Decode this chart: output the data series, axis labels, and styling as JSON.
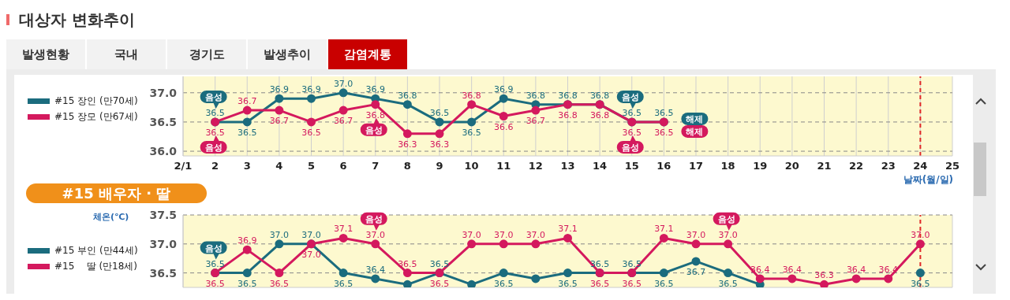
{
  "chart_data": [
    {
      "type": "line",
      "title": "대상자 변화추이",
      "xlabel": "날짜(월/일)",
      "xlim": [
        1,
        25
      ],
      "xticks": [
        {
          "value": 1,
          "label": "2/1"
        },
        2,
        3,
        4,
        5,
        6,
        7,
        8,
        9,
        10,
        11,
        12,
        13,
        14,
        15,
        16,
        17,
        18,
        19,
        20,
        21,
        22,
        23,
        24,
        25
      ],
      "ylim": [
        35.92,
        37.28
      ],
      "yticks": [
        {
          "value": 36.0,
          "label": "36.0"
        },
        {
          "value": 36.5,
          "label": "36.5"
        },
        {
          "value": 37.0,
          "label": "37.0"
        }
      ],
      "grid": true,
      "legend": "left",
      "marker": "circle",
      "line_style": "solid",
      "x": [
        2,
        3,
        4,
        5,
        6,
        7,
        8,
        9,
        10,
        11,
        12,
        13,
        14,
        15,
        16
      ],
      "series": [
        {
          "name": "#15 장인 (만70세)",
          "color": "#1b6c7e",
          "values": [
            36.5,
            36.5,
            36.9,
            36.9,
            37.0,
            36.9,
            36.8,
            36.5,
            36.5,
            36.9,
            36.8,
            36.8,
            36.8,
            36.5,
            36.5
          ],
          "value_labels": [
            "36.5",
            "36.5",
            "36.9",
            "36.9",
            "37.0",
            "36.9",
            "36.8",
            "36.5",
            "36.5",
            "36.9",
            "36.8",
            "36.8",
            "36.8",
            "36.5",
            "36.5"
          ]
        },
        {
          "name": "#15 장모 (만67세)",
          "color": "#d4195e",
          "values": [
            36.5,
            36.7,
            36.7,
            36.5,
            36.7,
            36.8,
            36.3,
            36.3,
            36.8,
            36.6,
            36.7,
            36.8,
            36.8,
            36.5,
            36.5
          ],
          "value_labels": [
            "36.5",
            "36.7",
            "36.7",
            "36.5",
            "36.7",
            "36.8",
            "36.3",
            "36.3",
            "36.8",
            "36.6",
            "36.7",
            "36.8",
            "36.8",
            "36.5",
            "36.5"
          ]
        }
      ],
      "ref_lines": [
        {
          "axis": "x",
          "value": 24,
          "color": "#e02828",
          "line_style": "dashed"
        }
      ],
      "annotations": [
        "발생현황",
        "국내",
        "경기도",
        "발생추이",
        "감염계통",
        {
          "text": "음성",
          "x": 2,
          "y": 36.5
        },
        {
          "text": "음성",
          "x": 2,
          "y": 36.5
        },
        {
          "text": "음성",
          "x": 7,
          "y": 36.8
        },
        {
          "text": "음성",
          "x": 15,
          "y": 36.5
        },
        {
          "text": "음성",
          "x": 15,
          "y": 36.5
        },
        {
          "text": "해제",
          "x": 16,
          "y": 36.5
        },
        {
          "text": "해제",
          "x": 16,
          "y": 36.5
        }
      ]
    },
    {
      "type": "line",
      "title": "#15 배우자 · 딸",
      "ylabel": "체온(℃)",
      "xlim": [
        1,
        25
      ],
      "xticks": [
        1,
        2,
        3,
        4,
        5,
        6,
        7,
        8,
        9,
        10,
        11,
        12,
        13,
        14,
        15,
        16,
        17,
        18,
        19,
        20,
        21,
        22,
        23,
        24,
        25
      ],
      "tick_labels": "y",
      "ylim": [
        36.25,
        37.5
      ],
      "yticks": [
        {
          "value": 36.5,
          "label": "36.5"
        },
        {
          "value": 37.0,
          "label": "37.0"
        },
        {
          "value": 37.5,
          "label": "37.5"
        }
      ],
      "grid": true,
      "legend": "left",
      "marker": "circle",
      "line_style": "solid",
      "x": [
        2,
        3,
        4,
        5,
        6,
        7,
        8,
        9,
        10,
        11,
        12,
        13,
        14,
        15,
        16,
        17,
        18,
        19,
        20,
        21,
        22,
        23,
        24
      ],
      "series": [
        {
          "name": "#15 부인 (만44세)",
          "color": "#1b6c7e",
          "values": [
            36.5,
            36.5,
            37.0,
            37.0,
            36.5,
            36.4,
            36.3,
            36.5,
            36.3,
            36.5,
            36.4,
            36.5,
            36.5,
            36.5,
            36.5,
            36.7,
            36.5,
            36.3,
            null,
            null,
            null,
            null,
            36.5
          ],
          "value_labels": [
            "36.5",
            "36.5",
            "37.0",
            "37.0",
            "36.5",
            "36.4",
            null,
            "36.5",
            null,
            "36.5",
            null,
            "36.5",
            "36.5",
            "36.5",
            "36.5",
            "36.7",
            "36.5",
            null,
            null,
            null,
            null,
            null,
            "36.5"
          ]
        },
        {
          "name": "#15    딸 (만18세)",
          "color": "#d4195e",
          "values": [
            36.5,
            36.9,
            36.5,
            37.0,
            37.1,
            37.0,
            36.5,
            36.5,
            37.0,
            37.0,
            37.0,
            37.1,
            36.5,
            36.5,
            37.1,
            37.0,
            37.0,
            36.4,
            36.4,
            36.3,
            36.4,
            36.4,
            37.0
          ],
          "value_labels": [
            "36.5",
            "36.9",
            "36.5",
            "37.0",
            "37.1",
            "37.0",
            "36.5",
            "36.5",
            "37.0",
            "37.0",
            "37.0",
            "37.1",
            "36.5",
            "36.5",
            "37.1",
            "37.0",
            "37.0",
            "36.4",
            "36.4",
            "36.3",
            "36.4",
            "36.4",
            "37.0"
          ]
        }
      ],
      "ref_lines": [
        {
          "axis": "x",
          "value": 24,
          "color": "#e02828",
          "line_style": "dashed"
        }
      ],
      "annotations": [
        {
          "text": "음성",
          "x": 2,
          "y": 36.5
        },
        {
          "text": "음성",
          "x": 7,
          "y": 37.0
        },
        {
          "text": "음성",
          "x": 18,
          "y": 37.0
        }
      ]
    }
  ]
}
